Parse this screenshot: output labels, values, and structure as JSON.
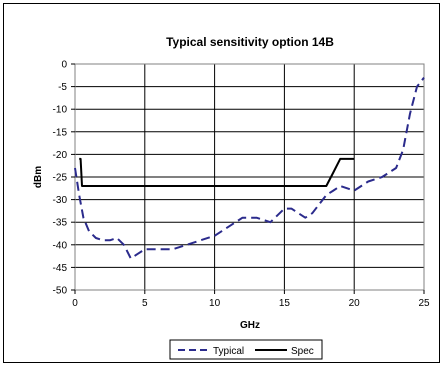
{
  "chart_data": {
    "type": "line",
    "title": "Typical sensitivity option 14B",
    "xlabel": "GHz",
    "ylabel": "dBm",
    "xlim": [
      0,
      25
    ],
    "ylim": [
      -50,
      0
    ],
    "x_ticks": [
      "0",
      "5",
      "10",
      "15",
      "20",
      "25"
    ],
    "y_ticks": [
      "0",
      "-5",
      "-10",
      "-15",
      "-20",
      "-25",
      "-30",
      "-35",
      "-40",
      "-45",
      "-50"
    ],
    "grid": true,
    "legend_position": "bottom",
    "series": [
      {
        "name": "Typical",
        "color": "#2b2b8c",
        "style": "dashed",
        "x": [
          0.0,
          0.3,
          0.6,
          1.0,
          1.5,
          2.0,
          2.5,
          3.0,
          3.5,
          4.0,
          4.5,
          5.0,
          6.0,
          7.0,
          8.0,
          9.0,
          10.0,
          11.0,
          12.0,
          13.0,
          14.0,
          15.0,
          15.5,
          16.0,
          16.5,
          17.0,
          17.5,
          18.0,
          18.5,
          19.0,
          19.5,
          20.0,
          21.0,
          22.0,
          23.0,
          23.5,
          24.0,
          24.5,
          25.0
        ],
        "y": [
          -23,
          -29,
          -34,
          -37,
          -38.5,
          -39,
          -39,
          -38.5,
          -40,
          -43,
          -42,
          -41,
          -41,
          -41,
          -40,
          -39,
          -38,
          -36,
          -34,
          -34,
          -35,
          -32,
          -32,
          -33,
          -34,
          -33,
          -31,
          -29,
          -28,
          -27,
          -27.5,
          -28,
          -26,
          -25,
          -23,
          -19,
          -11,
          -5,
          -3
        ]
      },
      {
        "name": "Spec",
        "color": "#000000",
        "style": "solid",
        "x": [
          0.3,
          0.4,
          0.5,
          18.0,
          18.5,
          19.0,
          20.0
        ],
        "y": [
          -21,
          -21,
          -27,
          -27,
          -24,
          -21,
          -21
        ]
      }
    ]
  }
}
